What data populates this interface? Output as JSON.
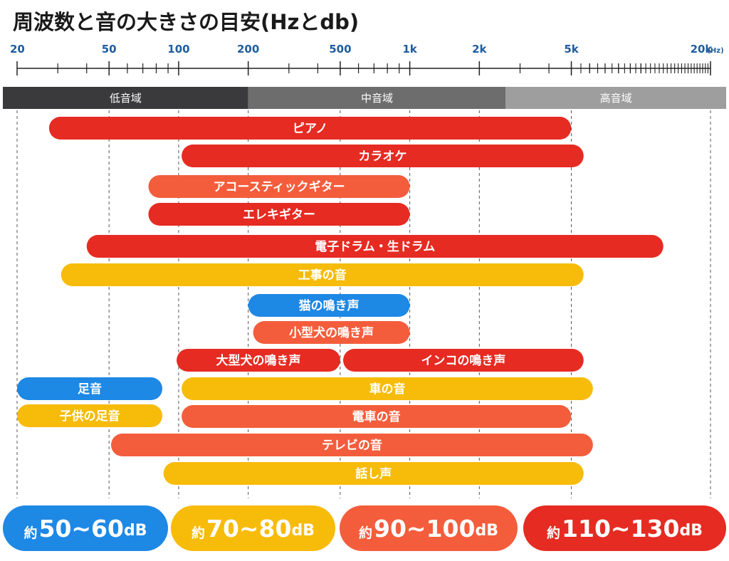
{
  "chart_data": {
    "type": "bar",
    "title": "周波数と音の大きさの目安(Hzとdb)",
    "axis": {
      "scale": "log",
      "range": [
        20,
        20000
      ],
      "ticks": [
        {
          "value": 20,
          "label": "20"
        },
        {
          "value": 50,
          "label": "50"
        },
        {
          "value": 100,
          "label": "100"
        },
        {
          "value": 200,
          "label": "200"
        },
        {
          "value": 500,
          "label": "500"
        },
        {
          "value": 1000,
          "label": "1k"
        },
        {
          "value": 2000,
          "label": "2k"
        },
        {
          "value": 5000,
          "label": "5k"
        },
        {
          "value": 20000,
          "label": "20k"
        }
      ],
      "unit": "(Hz)"
    },
    "bands": [
      {
        "label": "低音域",
        "from": 16.5,
        "to": 200,
        "color": "#3a3a3c"
      },
      {
        "label": "中音域",
        "from": 200,
        "to": 2600,
        "color": "#6d6d6d"
      },
      {
        "label": "高音域",
        "from": 2600,
        "to": 20000,
        "color": "#9e9e9e"
      }
    ],
    "legend": [
      {
        "prefix": "約",
        "value": "50~60",
        "unit": "dB",
        "color": "#1e88e5"
      },
      {
        "prefix": "約",
        "value": "70~80",
        "unit": "dB",
        "color": "#f7bb0a"
      },
      {
        "prefix": "約",
        "value": "90~100",
        "unit": "dB",
        "color": "#f45d3c"
      },
      {
        "prefix": "約",
        "value": "110~130",
        "unit": "dB",
        "color": "#e62b22"
      }
    ],
    "series": [
      {
        "name": "ピアノ",
        "from": 27.5,
        "to": 4990,
        "level": "110~130"
      },
      {
        "name": "カラオケ",
        "from": 103,
        "to": 5650,
        "level": "110~130"
      },
      {
        "name": "アコースティックギター",
        "from": 74,
        "to": 1000,
        "level": "90~100"
      },
      {
        "name": "エレキギター",
        "from": 74,
        "to": 1000,
        "level": "110~130"
      },
      {
        "name": "電子ドラム・生ドラム",
        "from": 40,
        "to": 12500,
        "level": "110~130"
      },
      {
        "name": "工事の音",
        "from": 31,
        "to": 5650,
        "level": "70~80"
      },
      {
        "name": "猫の鳴き声",
        "from": 200,
        "to": 1000,
        "level": "50~60"
      },
      {
        "name": "小型犬の鳴き声",
        "from": 210,
        "to": 1000,
        "level": "90~100"
      },
      {
        "name": "大型犬の鳴き声",
        "from": 98,
        "to": 500,
        "level": "110~130"
      },
      {
        "name": "インコの鳴き声",
        "from": 515,
        "to": 5650,
        "level": "110~130"
      },
      {
        "name": "足音",
        "from": 20,
        "to": 85,
        "level": "50~60"
      },
      {
        "name": "車の音",
        "from": 103,
        "to": 6200,
        "level": "70~80"
      },
      {
        "name": "子供の足音",
        "from": 20,
        "to": 85,
        "level": "70~80"
      },
      {
        "name": "電車の音",
        "from": 103,
        "to": 4990,
        "level": "90~100"
      },
      {
        "name": "テレビの音",
        "from": 51,
        "to": 6200,
        "level": "90~100"
      },
      {
        "name": "話し声",
        "from": 86,
        "to": 5650,
        "level": "70~80"
      }
    ]
  }
}
